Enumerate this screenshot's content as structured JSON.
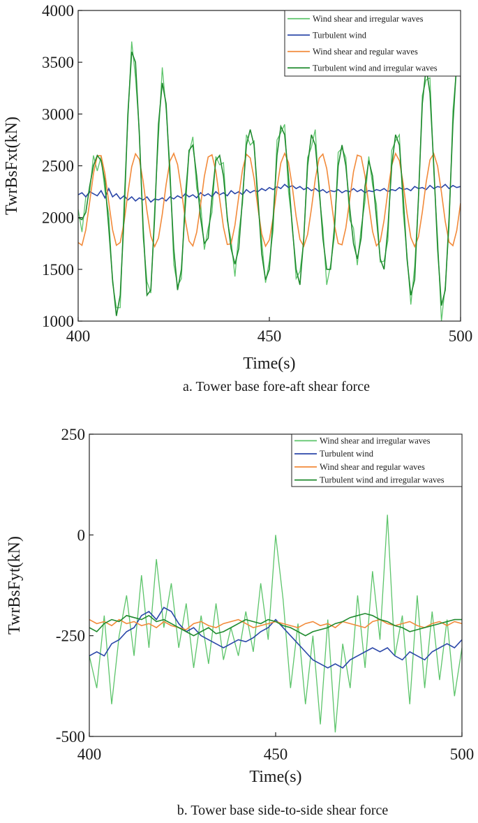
{
  "chart_data": [
    {
      "type": "line",
      "x_label": "Time(s)",
      "y_label": "TwrBsFxt(kN)",
      "caption": "a. Tower base fore-aft shear force",
      "xlim": [
        400,
        500
      ],
      "ylim": [
        1000,
        4000
      ],
      "xticks": [
        400,
        450,
        500
      ],
      "yticks": [
        1000,
        1500,
        2000,
        2500,
        3000,
        3500,
        4000
      ],
      "legend": "upper right",
      "x": [
        400,
        401,
        402,
        403,
        404,
        405,
        406,
        407,
        408,
        409,
        410,
        411,
        412,
        413,
        414,
        415,
        416,
        417,
        418,
        419,
        420,
        421,
        422,
        423,
        424,
        425,
        426,
        427,
        428,
        429,
        430,
        431,
        432,
        433,
        434,
        435,
        436,
        437,
        438,
        439,
        440,
        441,
        442,
        443,
        444,
        445,
        446,
        447,
        448,
        449,
        450,
        451,
        452,
        453,
        454,
        455,
        456,
        457,
        458,
        459,
        460,
        461,
        462,
        463,
        464,
        465,
        466,
        467,
        468,
        469,
        470,
        471,
        472,
        473,
        474,
        475,
        476,
        477,
        478,
        479,
        480,
        481,
        482,
        483,
        484,
        485,
        486,
        487,
        488,
        489,
        490,
        491,
        492,
        493,
        494,
        495,
        496,
        497,
        498,
        499,
        500
      ],
      "series": [
        {
          "name": "Wind shear and irregular waves",
          "color": "#5cc46a",
          "values": [
            2080,
            1860,
            2200,
            2240,
            2600,
            2450,
            2590,
            2260,
            2030,
            1370,
            1130,
            1130,
            2150,
            2940,
            3700,
            3350,
            2840,
            1810,
            1380,
            1270,
            2080,
            2780,
            3450,
            3040,
            2500,
            1550,
            1340,
            1410,
            2230,
            2620,
            2780,
            2280,
            2150,
            1690,
            1900,
            2050,
            2590,
            2510,
            2530,
            1970,
            1780,
            1430,
            1850,
            2140,
            2800,
            2700,
            2740,
            2110,
            1780,
            1370,
            1580,
            1880,
            2750,
            2820,
            2900,
            2250,
            1940,
            1410,
            1480,
            1770,
            2580,
            2680,
            2850,
            2240,
            1900,
            1350,
            1540,
            1810,
            2630,
            2670,
            2580,
            1980,
            1900,
            1540,
            1900,
            2150,
            2590,
            2310,
            2130,
            1570,
            1580,
            1780,
            2650,
            2740,
            2800,
            2050,
            1640,
            1160,
            1530,
            2170,
            3180,
            3330,
            3350,
            2440,
            1800,
            1000,
            1340,
            1910,
            3030,
            3470,
            3680
          ]
        },
        {
          "name": "Turbulent wind",
          "color": "#2a46a8",
          "values": [
            2220,
            2240,
            2200,
            2250,
            2230,
            2210,
            2260,
            2190,
            2280,
            2200,
            2230,
            2180,
            2210,
            2170,
            2200,
            2160,
            2190,
            2170,
            2200,
            2150,
            2180,
            2170,
            2190,
            2160,
            2200,
            2180,
            2210,
            2190,
            2230,
            2200,
            2220,
            2190,
            2240,
            2210,
            2230,
            2200,
            2250,
            2220,
            2240,
            2210,
            2260,
            2230,
            2250,
            2220,
            2270,
            2240,
            2260,
            2250,
            2280,
            2260,
            2290,
            2270,
            2300,
            2280,
            2320,
            2290,
            2310,
            2280,
            2300,
            2270,
            2290,
            2260,
            2280,
            2250,
            2270,
            2240,
            2260,
            2250,
            2270,
            2240,
            2260,
            2250,
            2280,
            2250,
            2270,
            2240,
            2260,
            2250,
            2270,
            2260,
            2280,
            2250,
            2270,
            2260,
            2290,
            2270,
            2280,
            2260,
            2300,
            2280,
            2290,
            2270,
            2310,
            2280,
            2300,
            2290,
            2320,
            2280,
            2310,
            2290,
            2300
          ]
        },
        {
          "name": "Wind shear and regular waves",
          "color": "#f28a3a",
          "values": [
            1759,
            1732,
            1882,
            2148,
            2424,
            2597,
            2597,
            2424,
            2148,
            1882,
            1732,
            1759,
            1953,
            2235,
            2490,
            2616,
            2562,
            2348,
            2062,
            1821,
            1720,
            1802,
            2032,
            2319,
            2545,
            2619,
            2512,
            2266,
            1981,
            1773,
            1726,
            1858,
            2117,
            2397,
            2585,
            2606,
            2449,
            2180,
            1907,
            1740,
            1747,
            1926,
            2203,
            2467,
            2611,
            2576,
            2377,
            2094,
            1842,
            1723,
            1784,
            2002,
            2288,
            2526,
            2620,
            2532,
            2297,
            2011,
            1789,
            1722,
            1836,
            2085,
            2369,
            2572,
            2613,
            2474,
            2212,
            1933,
            1750,
            1737,
            1899,
            2171,
            2442,
            2603,
            2589,
            2405,
            2126,
            1865,
            1727,
            1769,
            1973,
            2257,
            2505,
            2619,
            2550,
            2328,
            2041,
            1807,
            1720,
            1815,
            2053,
            2339,
            2557,
            2617,
            2497,
            2244,
            1962,
            1763,
            1729,
            1874,
            2139
          ]
        },
        {
          "name": "Turbulent wind and irregular waves",
          "color": "#1f8a2e",
          "values": [
            2000,
            1980,
            2050,
            2300,
            2500,
            2600,
            2550,
            2350,
            1900,
            1400,
            1050,
            1250,
            2000,
            3000,
            3600,
            3500,
            2800,
            1900,
            1250,
            1300,
            2000,
            2900,
            3300,
            3100,
            2400,
            1700,
            1300,
            1500,
            2100,
            2650,
            2700,
            2400,
            2000,
            1750,
            1800,
            2200,
            2550,
            2600,
            2400,
            2000,
            1700,
            1550,
            1700,
            2200,
            2700,
            2850,
            2700,
            2200,
            1650,
            1400,
            1500,
            2000,
            2600,
            2880,
            2800,
            2400,
            1900,
            1500,
            1350,
            1800,
            2500,
            2800,
            2700,
            2300,
            1800,
            1500,
            1500,
            1900,
            2500,
            2700,
            2500,
            2100,
            1750,
            1600,
            1800,
            2300,
            2550,
            2400,
            2000,
            1600,
            1500,
            1900,
            2500,
            2800,
            2700,
            2200,
            1600,
            1250,
            1400,
            2200,
            3100,
            3450,
            3200,
            2500,
            1700,
            1150,
            1300,
            2000,
            2900,
            3500,
            3600
          ]
        }
      ]
    },
    {
      "type": "line",
      "x_label": "Time(s)",
      "y_label": "TwrBsFyt(kN)",
      "caption": "b. Tower base side-to-side shear force",
      "xlim": [
        400,
        500
      ],
      "ylim": [
        -500,
        250
      ],
      "xticks": [
        400,
        450,
        500
      ],
      "yticks": [
        -500,
        -250,
        0,
        250
      ],
      "legend": "upper right",
      "x": [
        400,
        402,
        404,
        406,
        408,
        410,
        412,
        414,
        416,
        418,
        420,
        422,
        424,
        426,
        428,
        430,
        432,
        434,
        436,
        438,
        440,
        442,
        444,
        446,
        448,
        450,
        452,
        454,
        456,
        458,
        460,
        462,
        464,
        466,
        468,
        470,
        472,
        474,
        476,
        478,
        480,
        482,
        484,
        486,
        488,
        490,
        492,
        494,
        496,
        498,
        500
      ],
      "series": [
        {
          "name": "Wind shear and irregular waves",
          "color": "#5cc46a",
          "values": [
            -300,
            -380,
            -200,
            -420,
            -250,
            -150,
            -300,
            -100,
            -280,
            -60,
            -230,
            -120,
            -280,
            -170,
            -330,
            -200,
            -320,
            -170,
            -310,
            -230,
            -300,
            -190,
            -290,
            -120,
            -260,
            0,
            -160,
            -380,
            -220,
            -420,
            -250,
            -470,
            -210,
            -490,
            -270,
            -380,
            -150,
            -330,
            -90,
            -260,
            50,
            -300,
            -200,
            -420,
            -150,
            -380,
            -190,
            -360,
            -210,
            -400,
            -280
          ]
        },
        {
          "name": "Turbulent wind",
          "color": "#2a46a8",
          "values": [
            -300,
            -290,
            -300,
            -270,
            -260,
            -240,
            -230,
            -200,
            -190,
            -210,
            -180,
            -190,
            -220,
            -240,
            -230,
            -250,
            -260,
            -270,
            -280,
            -270,
            -260,
            -265,
            -255,
            -240,
            -230,
            -210,
            -230,
            -250,
            -270,
            -290,
            -310,
            -320,
            -330,
            -320,
            -330,
            -310,
            -300,
            -290,
            -280,
            -290,
            -280,
            -300,
            -310,
            -290,
            -300,
            -310,
            -290,
            -280,
            -270,
            -280,
            -260
          ]
        },
        {
          "name": "Wind shear and regular waves",
          "color": "#f28a3a",
          "values": [
            -210,
            -220,
            -215,
            -225,
            -210,
            -220,
            -215,
            -225,
            -220,
            -230,
            -215,
            -225,
            -230,
            -235,
            -220,
            -215,
            -225,
            -230,
            -220,
            -215,
            -210,
            -220,
            -230,
            -225,
            -220,
            -215,
            -220,
            -225,
            -230,
            -220,
            -215,
            -225,
            -220,
            -230,
            -215,
            -220,
            -225,
            -230,
            -215,
            -210,
            -220,
            -225,
            -220,
            -215,
            -225,
            -230,
            -220,
            -215,
            -225,
            -215,
            -220
          ]
        },
        {
          "name": "Turbulent wind and irregular waves",
          "color": "#1f8a2e",
          "values": [
            -230,
            -240,
            -220,
            -210,
            -215,
            -200,
            -205,
            -210,
            -200,
            -215,
            -210,
            -220,
            -230,
            -240,
            -250,
            -240,
            -230,
            -245,
            -240,
            -230,
            -220,
            -210,
            -215,
            -220,
            -210,
            -215,
            -225,
            -230,
            -240,
            -250,
            -240,
            -235,
            -230,
            -220,
            -215,
            -205,
            -200,
            -195,
            -200,
            -210,
            -215,
            -225,
            -230,
            -240,
            -235,
            -230,
            -225,
            -220,
            -215,
            -210,
            -210
          ]
        }
      ]
    }
  ]
}
